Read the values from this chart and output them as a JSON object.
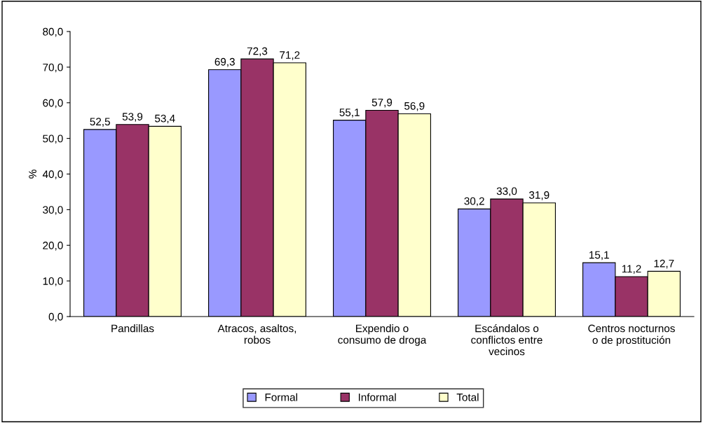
{
  "chart_data": {
    "type": "bar",
    "ylabel": "%",
    "categories": [
      "Pandillas",
      "Atracos, asaltos,\nrobos",
      "Expendio o\nconsumo de droga",
      "Escándalos o\nconflictos entre\nvecinos",
      "Centros nocturnos\no de prostitución"
    ],
    "series": [
      {
        "name": "Formal",
        "color": "#9999ff",
        "values": [
          52.5,
          69.3,
          55.1,
          30.2,
          15.1
        ],
        "value_labels": [
          "52,5",
          "69,3",
          "55,1",
          "30,2",
          "15,1"
        ]
      },
      {
        "name": "Informal",
        "color": "#993366",
        "values": [
          53.9,
          72.3,
          57.9,
          33.0,
          11.2
        ],
        "value_labels": [
          "53,9",
          "72,3",
          "57,9",
          "33,0",
          "11,2"
        ]
      },
      {
        "name": "Total",
        "color": "#ffffcc",
        "values": [
          53.4,
          71.2,
          56.9,
          31.9,
          12.7
        ],
        "value_labels": [
          "53,4",
          "71,2",
          "56,9",
          "31,9",
          "12,7"
        ]
      }
    ],
    "ylim": [
      0,
      80
    ],
    "yticks": [
      {
        "value": 0,
        "label": "0,0"
      },
      {
        "value": 10,
        "label": "10,0"
      },
      {
        "value": 20,
        "label": "20,0"
      },
      {
        "value": 30,
        "label": "30,0"
      },
      {
        "value": 40,
        "label": "40,0"
      },
      {
        "value": 50,
        "label": "50,0"
      },
      {
        "value": 60,
        "label": "60,0"
      },
      {
        "value": 70,
        "label": "70,0"
      },
      {
        "value": 80,
        "label": "80,0"
      }
    ],
    "grid": false,
    "legend": "bottom"
  }
}
